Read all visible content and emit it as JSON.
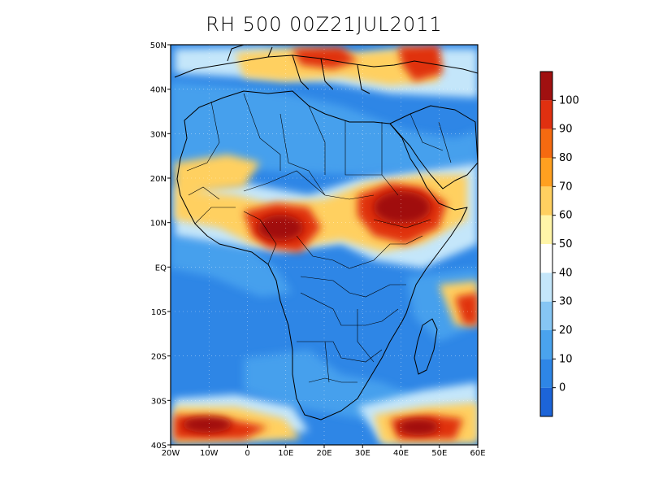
{
  "title": "RH 500 00Z21JUL2011",
  "map": {
    "lon_range": [
      -20,
      60
    ],
    "lat_range": [
      -40,
      50
    ],
    "x_ticks": [
      "20W",
      "10W",
      "0",
      "10E",
      "20E",
      "30E",
      "40E",
      "50E",
      "60E"
    ],
    "y_ticks": [
      "50N",
      "40N",
      "30N",
      "20N",
      "10N",
      "EQ",
      "10S",
      "20S",
      "30S",
      "40S"
    ],
    "background_color": "#2e86e6",
    "grid": "dotted"
  },
  "colorbar": {
    "labels": [
      "0",
      "10",
      "20",
      "30",
      "40",
      "50",
      "60",
      "70",
      "80",
      "90",
      "100"
    ],
    "colors": [
      "#1c64d8",
      "#2e86e6",
      "#4aa3ee",
      "#86c6f4",
      "#c4e6fa",
      "#ffffff",
      "#fff5a8",
      "#ffd060",
      "#ffa020",
      "#f56a10",
      "#e03010",
      "#a01010"
    ]
  }
}
